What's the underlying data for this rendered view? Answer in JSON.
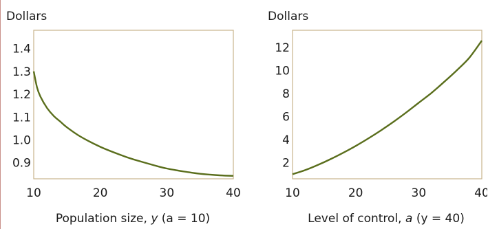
{
  "chart_data": [
    {
      "type": "line",
      "ylabel": "Dollars",
      "xlabel": {
        "prefix": "Population size, ",
        "var": "y",
        "cond": "(a = 10)"
      },
      "xlim": [
        10,
        40
      ],
      "ylim": [
        0.83,
        1.48
      ],
      "xticks": [
        "10",
        "20",
        "30",
        "40"
      ],
      "yticks": [
        "0.9",
        "1.0",
        "1.1",
        "1.2",
        "1.3",
        "1.4"
      ],
      "line_color": "#5a6e1c",
      "frame_color": "#c8b48c",
      "series": [
        {
          "x": [
            10,
            10.5,
            11,
            12,
            13,
            14,
            15,
            17,
            20,
            23,
            25,
            28,
            30,
            33,
            35,
            38,
            40
          ],
          "values": [
            1.3,
            1.23,
            1.19,
            1.14,
            1.105,
            1.08,
            1.055,
            1.015,
            0.97,
            0.935,
            0.915,
            0.89,
            0.875,
            0.86,
            0.852,
            0.845,
            0.843
          ]
        }
      ]
    },
    {
      "type": "line",
      "ylabel": "Dollars",
      "xlabel": {
        "prefix": "Level of control, ",
        "var": "a",
        "cond": "(y = 40)"
      },
      "xlim": [
        10,
        40
      ],
      "ylim": [
        0.6,
        13.5
      ],
      "xticks": [
        "10",
        "20",
        "30",
        "40"
      ],
      "yticks": [
        "2",
        "4",
        "6",
        "8",
        "10",
        "12"
      ],
      "line_color": "#5a6e1c",
      "frame_color": "#c8b48c",
      "series": [
        {
          "x": [
            10,
            12,
            14,
            16,
            18,
            20,
            22,
            24,
            26,
            28,
            30,
            32,
            34,
            36,
            38,
            40
          ],
          "values": [
            1.0,
            1.35,
            1.8,
            2.3,
            2.85,
            3.45,
            4.1,
            4.8,
            5.55,
            6.35,
            7.2,
            8.05,
            9.0,
            10.0,
            11.1,
            12.6
          ]
        }
      ]
    }
  ]
}
